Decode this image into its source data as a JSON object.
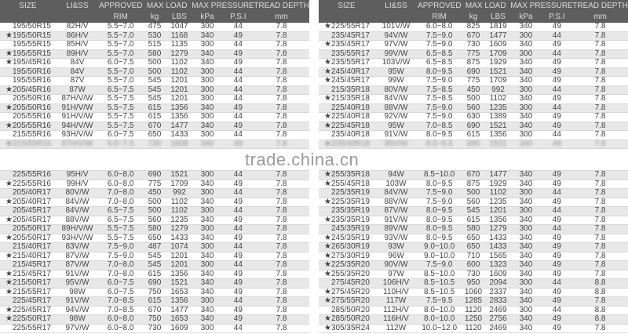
{
  "headers": {
    "size": "SIZE",
    "li": "LI&SS",
    "approved": "APPROVED",
    "rim": "RIM",
    "max_load": "MAX LOAD",
    "kg": "kg",
    "lbs": "LBS",
    "max_pressure": "MAX PRESSURE",
    "kpa": "kPa",
    "psi": "P.S.I",
    "tread": "TREAD DEPTH",
    "mm": "mm"
  },
  "watermark": "trade.china.cn",
  "left_rows": [
    [
      "195/50R15",
      "82H/V",
      "5.5~7.0",
      "475",
      "1047",
      "300",
      "44",
      "7.8"
    ],
    [
      "★195/50R15",
      "86H/V",
      "5.5~7.0",
      "530",
      "1168",
      "340",
      "49",
      "7.8"
    ],
    [
      "195/55R15",
      "85H/V",
      "5.5~7.0",
      "515",
      "1135",
      "300",
      "44",
      "7.8"
    ],
    [
      "★195/55R15",
      "89H/V",
      "5.5~7.0",
      "580",
      "1279",
      "340",
      "49",
      "7.8"
    ],
    [
      "★195/45R16",
      "84V",
      "6.0~7.5",
      "500",
      "1102",
      "340",
      "49",
      "7.8"
    ],
    [
      "195/50R16",
      "84V",
      "5.5~7.0",
      "500",
      "1102",
      "300",
      "44",
      "7.8"
    ],
    [
      "195/55R16",
      "87V",
      "5.5~7.0",
      "545",
      "1201",
      "300",
      "44",
      "7.8"
    ],
    [
      "★205/45R16",
      "87W",
      "6.5~7.5",
      "545",
      "1201",
      "300",
      "44",
      "7.8"
    ],
    [
      "205/50R16",
      "87H/V/W",
      "5.5~7.5",
      "545",
      "1201",
      "300",
      "44",
      "7.8"
    ],
    [
      "★205/50R16",
      "91H/V/W",
      "5.5~7.5",
      "615",
      "1356",
      "340",
      "49",
      "7.8"
    ],
    [
      "205/55R16",
      "91H/V/W",
      "5.5~7.5",
      "615",
      "1356",
      "300",
      "44",
      "7.8"
    ],
    [
      "★205/55R16",
      "94H/V/W",
      "5.5~7.5",
      "670",
      "1477",
      "340",
      "49",
      "7.8"
    ],
    [
      "215/55R16",
      "93H/V/W",
      "6.0~7.5",
      "650",
      "1433",
      "300",
      "44",
      "7.8"
    ],
    [
      "★215/55R16",
      "97H/V/W",
      "6.0~7.5",
      "730",
      "1609",
      "340",
      "49",
      "7.8"
    ],
    [
      "",
      "",
      "",
      "",
      "",
      "",
      "",
      ""
    ],
    [
      "225/55R16",
      "95H/V",
      "6.0~8.0",
      "690",
      "1521",
      "300",
      "44",
      "7.8"
    ],
    [
      "★225/55R16",
      "99H/V",
      "6.0~8.0",
      "775",
      "1709",
      "340",
      "49",
      "7.8"
    ],
    [
      "205/40R17",
      "80V/W",
      "7.0~8.0",
      "450",
      "992",
      "300",
      "44",
      "7.8"
    ],
    [
      "★205/40R17",
      "84V/W",
      "7.0~8.0",
      "500",
      "1102",
      "340",
      "49",
      "7.8"
    ],
    [
      "205/45R17",
      "84V/W",
      "6.5~7.5",
      "500",
      "1102",
      "300",
      "44",
      "7.8"
    ],
    [
      "★205/45R17",
      "88V/W",
      "6.5~7.5",
      "560",
      "1235",
      "340",
      "49",
      "7.8"
    ],
    [
      "205/50R17",
      "89H/V/W",
      "5.5~7.5",
      "580",
      "1279",
      "300",
      "44",
      "7.8"
    ],
    [
      "★205/50R17",
      "93H/V/W",
      "5.5~7.5",
      "650",
      "1433",
      "340",
      "49",
      "7.8"
    ],
    [
      "215/40R17",
      "83V/W",
      "7.5~9.0",
      "487",
      "1074",
      "300",
      "44",
      "7.8"
    ],
    [
      "★215/40R17",
      "87V/W",
      "7.5~9.0",
      "545",
      "1201",
      "340",
      "49",
      "7.8"
    ],
    [
      "215/45R17",
      "87V/W",
      "7.0~8.0",
      "545",
      "1201",
      "300",
      "44",
      "7.8"
    ],
    [
      "★215/45R17",
      "91V/W",
      "7.0~8.0",
      "615",
      "1356",
      "340",
      "49",
      "7.8"
    ],
    [
      "★215/50R17",
      "95V/W",
      "6.0~7.5",
      "690",
      "1521",
      "340",
      "49",
      "7.8"
    ],
    [
      "★215/55R17",
      "98W",
      "6.0~7.5",
      "750",
      "1653",
      "340",
      "49",
      "7.8"
    ],
    [
      "225/45R17",
      "91V/W",
      "7.0~8.5",
      "615",
      "1356",
      "300",
      "44",
      "7.8"
    ],
    [
      "★225/45R17",
      "94V/W",
      "7.0~8.5",
      "670",
      "1477",
      "340",
      "49",
      "7.8"
    ],
    [
      "★225/50R17",
      "98W",
      "6.0~8.0",
      "750",
      "1653",
      "340",
      "49",
      "7.8"
    ],
    [
      "225/55R17",
      "97V/W",
      "6.0~8.0",
      "730",
      "1609",
      "300",
      "44",
      "7.8"
    ]
  ],
  "right_rows": [
    [
      "★225/55R17",
      "101V/W",
      "6.0~8.0",
      "825",
      "1819",
      "340",
      "49",
      "7.8"
    ],
    [
      "235/45R17",
      "94V/W",
      "7.5~9.0",
      "670",
      "1477",
      "300",
      "44",
      "7.8"
    ],
    [
      "★235/45R17",
      "97V/W",
      "7.5~9.0",
      "730",
      "1609",
      "340",
      "49",
      "7.8"
    ],
    [
      "235/55R17",
      "99V/W",
      "6.5~8.5",
      "775",
      "1709",
      "300",
      "44",
      "7.8"
    ],
    [
      "★235/55R17",
      "103V/W",
      "6.5~8.5",
      "875",
      "1929",
      "340",
      "49",
      "7.8"
    ],
    [
      "★245/40R17",
      "95W",
      "8.0~9.5",
      "690",
      "1521",
      "340",
      "49",
      "7.8"
    ],
    [
      "★245/45R17",
      "99W",
      "7.5~9.0",
      "775",
      "1709",
      "340",
      "49",
      "7.8"
    ],
    [
      "215/35R18",
      "80V/W",
      "7.5~8.5",
      "450",
      "992",
      "300",
      "44",
      "7.8"
    ],
    [
      "★215/35R18",
      "84V/W",
      "7.5~8.5",
      "500",
      "1102",
      "340",
      "49",
      "7.8"
    ],
    [
      "225/40R18",
      "88V/W",
      "7.5~9.0",
      "560",
      "1235",
      "300",
      "44",
      "7.8"
    ],
    [
      "★225/40R18",
      "92V/W",
      "7.5~9.0",
      "630",
      "1389",
      "340",
      "49",
      "7.8"
    ],
    [
      "★225/45R18",
      "95W",
      "7.0~8.5",
      "690",
      "1521",
      "340",
      "49",
      "7.8"
    ],
    [
      "235/40R18",
      "91V/W",
      "8.0~9.5",
      "615",
      "1356",
      "300",
      "44",
      "7.8"
    ],
    [
      "★235/40R18",
      "95V/W",
      "8.0~9.5",
      "690",
      "1521",
      "340",
      "49",
      "7.8"
    ],
    [
      "",
      "",
      "",
      "",
      "",
      "",
      "",
      ""
    ],
    [
      "★255/35R18",
      "94W",
      "8.5~10.0",
      "670",
      "1477",
      "340",
      "49",
      "7.8"
    ],
    [
      "★255/45R18",
      "103W",
      "8.0~9.5",
      "875",
      "1929",
      "340",
      "49",
      "7.8"
    ],
    [
      "225/35R19",
      "84V/W",
      "7.5~9.0",
      "500",
      "1102",
      "300",
      "44",
      "7.8"
    ],
    [
      "★225/35R19",
      "88V/W",
      "7.5~9.0",
      "560",
      "1235",
      "340",
      "49",
      "7.8"
    ],
    [
      "235/35R19",
      "87V/W",
      "8.0~9.5",
      "545",
      "1201",
      "300",
      "44",
      "7.8"
    ],
    [
      "★235/35R19",
      "91V/W",
      "8.0~9.5",
      "615",
      "1356",
      "340",
      "49",
      "7.8"
    ],
    [
      "245/35R19",
      "89V/W",
      "8.0~9.5",
      "580",
      "1279",
      "300",
      "44",
      "7.8"
    ],
    [
      "★245/35R19",
      "93V/W",
      "8.0~9.5",
      "650",
      "1433",
      "340",
      "49",
      "7.8"
    ],
    [
      "★265/30R19",
      "93W",
      "9.0~10.0",
      "650",
      "1433",
      "340",
      "49",
      "7.8"
    ],
    [
      "★275/30R19",
      "96W",
      "9.0~10.0",
      "710",
      "1565",
      "340",
      "49",
      "7.8"
    ],
    [
      "★225/35R20",
      "90V/W",
      "7.5~9.0",
      "600",
      "1323",
      "340",
      "49",
      "7.8"
    ],
    [
      "★255/35R20",
      "97W",
      "8.5~10.0",
      "730",
      "1609",
      "340",
      "49",
      "7.8"
    ],
    [
      "275/45R20",
      "106H/V",
      "8.5~10.5",
      "950",
      "2094",
      "300",
      "44",
      "8.8"
    ],
    [
      "★275/45R20",
      "110H/V",
      "8.5~10.5",
      "1060",
      "2337",
      "340",
      "49",
      "8.8"
    ],
    [
      "★275/55R20",
      "117W",
      "7.5~9.5",
      "1285",
      "2833",
      "340",
      "49",
      "7.8"
    ],
    [
      "285/50R20",
      "112H/V",
      "8.0~10.0",
      "1120",
      "2469",
      "300",
      "44",
      "8.8"
    ],
    [
      "★285/50R20",
      "116H/V",
      "8.0~10.0",
      "1250",
      "2756",
      "340",
      "49",
      "8.8"
    ],
    [
      "★305/35R24",
      "112W",
      "10.0~12.0",
      "1120",
      "2469",
      "340",
      "49",
      "7.8"
    ]
  ]
}
